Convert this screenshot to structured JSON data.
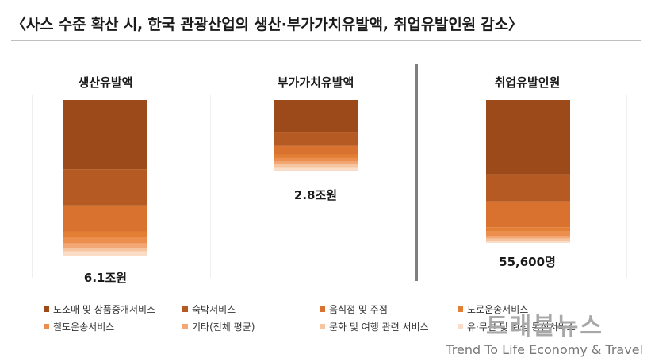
{
  "title": "〈사스 수준 확산 시, 한국 관광산업의 생산·부가가치유발액, 취업유발인원 감소〉",
  "chart_data": [
    {
      "type": "bar",
      "stacked": true,
      "title": "생산유발액",
      "total_label": "6.1조원",
      "series_values_note": "",
      "segments": [
        0.4,
        0.21,
        0.15,
        0.03,
        0.04,
        0.025,
        0.02,
        0.025
      ]
    },
    {
      "type": "bar",
      "stacked": true,
      "title": "부가가치유발액",
      "total_label": "2.8조원",
      "segments": [
        0.45,
        0.2,
        0.12,
        0.05,
        0.05,
        0.04,
        0.04,
        0.05
      ]
    },
    {
      "type": "bar",
      "stacked": true,
      "title": "취업유발인원",
      "total_label": "55,600명",
      "segments": [
        0.52,
        0.19,
        0.18,
        0.03,
        0.03,
        0.02,
        0.015,
        0.015
      ]
    }
  ],
  "legend": [
    {
      "label": "도소매 및 상품중개서비스",
      "color": "#9c4a1a"
    },
    {
      "label": "숙박서비스",
      "color": "#b55a22"
    },
    {
      "label": "음식점 및 주점",
      "color": "#d8722e"
    },
    {
      "label": "도로운송서비스",
      "color": "#e27f35"
    },
    {
      "label": "철도운송서비스",
      "color": "#ec8f4e"
    },
    {
      "label": "기타(전체 평균)",
      "color": "#f2a774"
    },
    {
      "label": "문화 및 여행 관련 서비스",
      "color": "#f7c4a0"
    },
    {
      "label": "유·무선 및 위성 통신서비스",
      "color": "#fadcc7"
    }
  ],
  "watermark": {
    "brand": "트래블뉴스",
    "tagline": "Trend To Life Economy & Travel"
  }
}
